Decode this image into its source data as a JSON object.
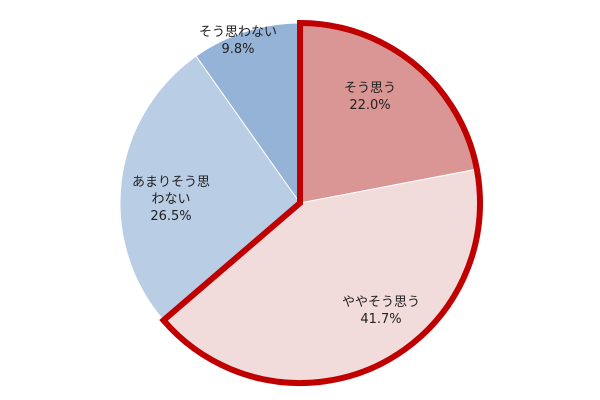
{
  "chart_data": {
    "type": "pie",
    "slices": [
      {
        "label": "そう思う",
        "label_lines": [
          "そう思う"
        ],
        "value": 22.0,
        "value_text": "22.0%",
        "color": "#d99694",
        "highlighted": true
      },
      {
        "label": "ややそう思う",
        "label_lines": [
          "ややそう思う"
        ],
        "value": 41.7,
        "value_text": "41.7%",
        "color": "#f2dcdb",
        "highlighted": true
      },
      {
        "label": "あまりそう思わない",
        "label_lines": [
          "あまりそう思",
          "わない"
        ],
        "value": 26.5,
        "value_text": "26.5%",
        "color": "#b9cde5",
        "highlighted": false
      },
      {
        "label": "そう思わない",
        "label_lines": [
          "そう思わない"
        ],
        "value": 9.8,
        "value_text": "9.8%",
        "color": "#95b3d7",
        "highlighted": false
      }
    ],
    "start_angle": "12 o'clock",
    "direction": "clockwise",
    "highlight_outline_color": "#c00000",
    "title": "",
    "legend": "none"
  }
}
